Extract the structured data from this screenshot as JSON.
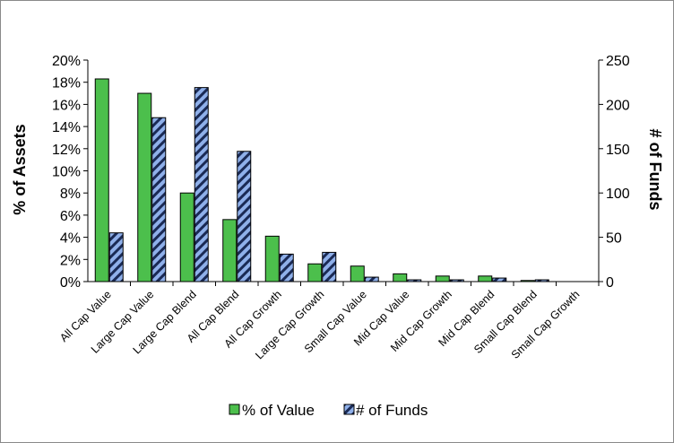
{
  "chart_data": {
    "type": "bar",
    "categories": [
      "All Cap Value",
      "Large Cap Value",
      "Large Cap Blend",
      "All Cap Blend",
      "All Cap Growth",
      "Large Cap Growth",
      "Small Cap Value",
      "Mid Cap Value",
      "Mid Cap Growth",
      "Mid Cap Blend",
      "Small Cap Blend",
      "Small Cap Growth"
    ],
    "series": [
      {
        "name": "% of Value",
        "axis": "left",
        "color": "#4cbf4c",
        "values": [
          18.3,
          17.0,
          8.0,
          5.6,
          4.1,
          1.6,
          1.4,
          0.7,
          0.5,
          0.5,
          0.1,
          0.0
        ]
      },
      {
        "name": "# of Funds",
        "axis": "right",
        "color": "#1a2a55",
        "stripe_color": "#8fb0ea",
        "values": [
          55,
          185,
          219,
          147,
          31,
          33,
          5,
          2,
          2,
          4,
          2,
          0
        ]
      }
    ],
    "ylabel": "% of Assets",
    "y2label": "# of Funds",
    "ylim": [
      0,
      20
    ],
    "y2lim": [
      0,
      250
    ],
    "yticks": [
      "0%",
      "2%",
      "4%",
      "6%",
      "8%",
      "10%",
      "12%",
      "14%",
      "16%",
      "18%",
      "20%"
    ],
    "y2ticks": [
      "0",
      "50",
      "100",
      "150",
      "200",
      "250"
    ],
    "grid": false,
    "legend_position": "bottom"
  }
}
